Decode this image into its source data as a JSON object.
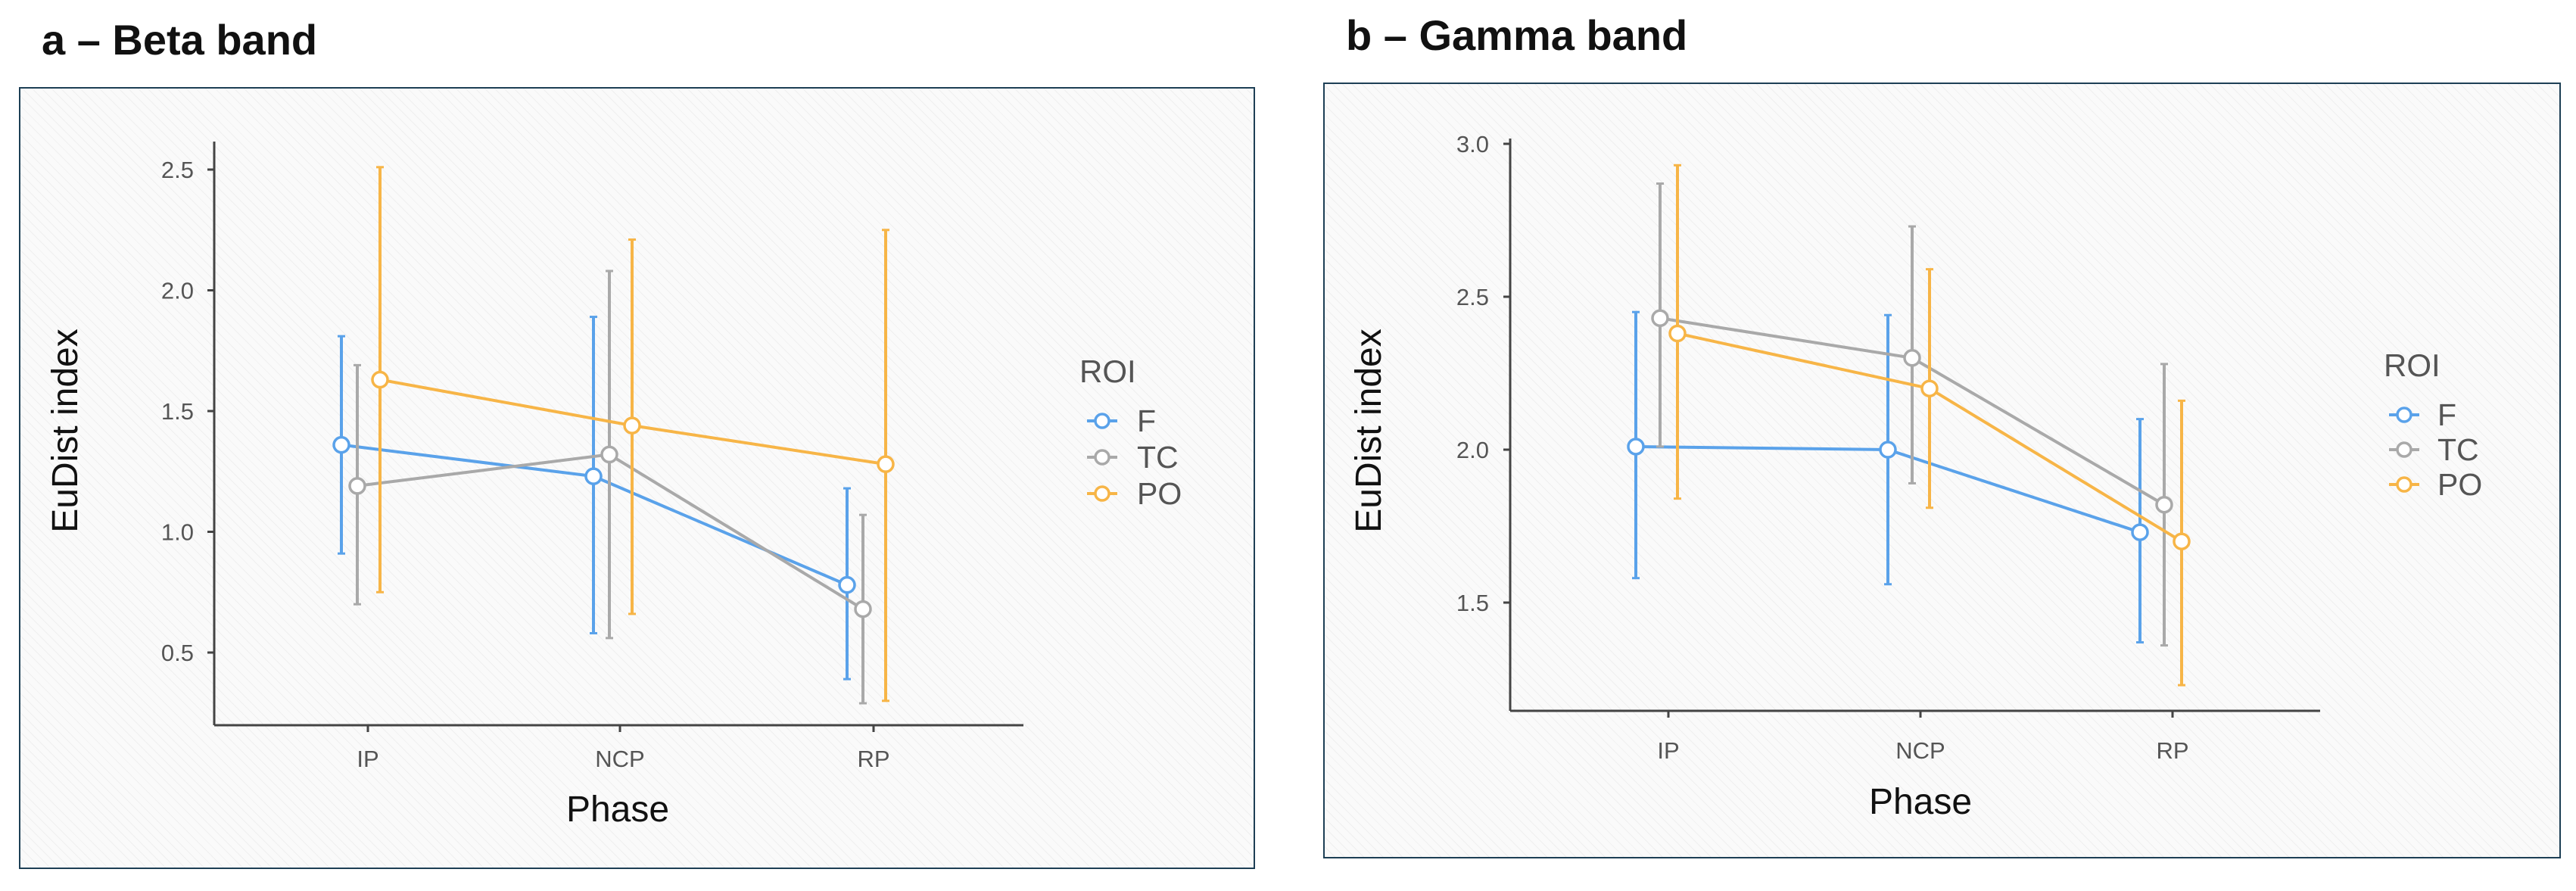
{
  "chart_data": [
    {
      "panel": "a",
      "type": "line",
      "title": "a – Beta band",
      "xlabel": "Phase",
      "ylabel": "EuDist index",
      "categories": [
        "IP",
        "NCP",
        "RP"
      ],
      "yticks": [
        0.5,
        1.0,
        1.5,
        2.0,
        2.5
      ],
      "ytick_labels": [
        "0.5",
        "1.0",
        "1.5",
        "2.0",
        "2.5"
      ],
      "ylim": [
        0.2,
        2.6
      ],
      "grid": false,
      "legend_title": "ROI",
      "legend_position": "right",
      "series": [
        {
          "name": "F",
          "color": "#5aa2ea",
          "values": [
            1.36,
            1.23,
            0.78
          ],
          "lower": [
            0.91,
            0.58,
            0.39
          ],
          "upper": [
            1.81,
            1.89,
            1.18
          ]
        },
        {
          "name": "TC",
          "color": "#a9a9a9",
          "values": [
            1.19,
            1.32,
            0.68
          ],
          "lower": [
            0.7,
            0.56,
            0.29
          ],
          "upper": [
            1.69,
            2.08,
            1.07
          ]
        },
        {
          "name": "PO",
          "color": "#f7b547",
          "values": [
            1.63,
            1.44,
            1.28
          ],
          "lower": [
            0.75,
            0.66,
            0.3
          ],
          "upper": [
            2.51,
            2.21,
            2.25
          ]
        }
      ]
    },
    {
      "panel": "b",
      "type": "line",
      "title": "b – Gamma band",
      "xlabel": "Phase",
      "ylabel": "EuDist index",
      "categories": [
        "IP",
        "NCP",
        "RP"
      ],
      "yticks": [
        1.5,
        2.0,
        2.5,
        3.0
      ],
      "ytick_labels": [
        "1.5",
        "2.0",
        "2.5",
        "3.0"
      ],
      "ylim": [
        1.15,
        3.0
      ],
      "grid": false,
      "legend_title": "ROI",
      "legend_position": "right",
      "series": [
        {
          "name": "F",
          "color": "#5aa2ea",
          "values": [
            2.01,
            2.0,
            1.73
          ],
          "lower": [
            1.58,
            1.56,
            1.37
          ],
          "upper": [
            2.45,
            2.44,
            2.1
          ]
        },
        {
          "name": "TC",
          "color": "#a9a9a9",
          "values": [
            2.43,
            2.3,
            1.82
          ],
          "lower": [
            2.01,
            1.89,
            1.36
          ],
          "upper": [
            2.87,
            2.73,
            2.28
          ]
        },
        {
          "name": "PO",
          "color": "#f7b547",
          "values": [
            2.38,
            2.2,
            1.7
          ],
          "lower": [
            1.84,
            1.81,
            1.23
          ],
          "upper": [
            2.93,
            2.59,
            2.16
          ]
        }
      ]
    }
  ]
}
